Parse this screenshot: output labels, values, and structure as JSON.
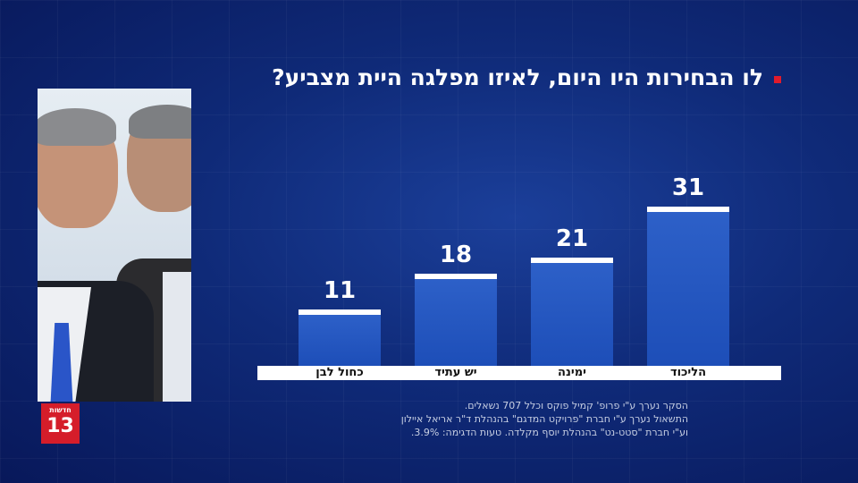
{
  "title": "לו הבחירות היו היום, לאיזו מפלגה היית מצביע?",
  "logo": {
    "top_text": "חדשות",
    "number": "13"
  },
  "chart_data": {
    "type": "bar",
    "title": "לו הבחירות היו היום, לאיזו מפלגה היית מצביע?",
    "categories": [
      "כחול לבן",
      "יש עתיד",
      "ימינה",
      "הליכוד"
    ],
    "values": [
      11,
      18,
      21,
      31
    ],
    "xlabel": "",
    "ylabel": "",
    "ylim": [
      0,
      35
    ],
    "grid": false,
    "bar_color": "#2558c4",
    "bar_top_color": "#ffffff"
  },
  "footnote": [
    "הסקר נערך ע\"י פרופ' קמיל פוקס וכלל 707 נשאלים.",
    "התשאול נערך ע\"י חברת \"פרויקט המדגם\" בהנהלת ד\"ר אריאל איילון",
    "וע\"י חברת \"סטט-נט\" בהנהלת יוסף מקלדה. טעות הדגימה: 3.9%."
  ],
  "colors": {
    "background": "#0f2a78",
    "accent_red": "#e01b2c",
    "logo_red": "#d51d2a"
  }
}
